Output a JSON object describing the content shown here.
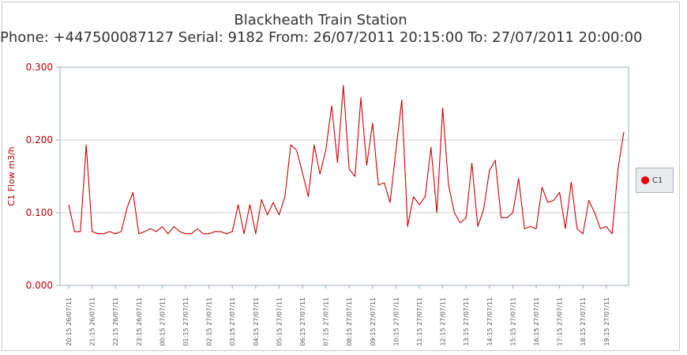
{
  "title": "Blackheath Train Station",
  "subtitle": "Phone: +447500087127 Serial: 9182 From: 26/07/2011 20:15:00 To: 27/07/2011 20:00:00",
  "colors": {
    "series": "#cc0000",
    "axis_text": "#b00000",
    "grid": "#cccccc",
    "plot_border": "#99aabb"
  },
  "chart_data": {
    "type": "line",
    "title": "Blackheath Train Station",
    "subtitle": "Phone: +447500087127 Serial: 9182 From: 26/07/2011 20:15:00 To: 27/07/2011 20:00:00",
    "xlabel": "",
    "ylabel": "C1 Flow m3/h",
    "ylim": [
      0,
      0.3
    ],
    "yticks": [
      "0.000",
      "0.100",
      "0.200",
      "0.300"
    ],
    "grid": true,
    "legend_placement": "right",
    "x_tick_labels": [
      "20:15 26/07/11",
      "21:15 26/07/11",
      "22:15 26/07/11",
      "23:15 26/07/11",
      "00:15 27/07/11",
      "01:15 27/07/11",
      "02:15 27/07/11",
      "03:15 27/07/11",
      "04:15 27/07/11",
      "05:15 27/07/11",
      "06:15 27/07/11",
      "07:15 27/07/11",
      "08:15 27/07/11",
      "09:15 27/07/11",
      "10:15 27/07/11",
      "11:15 27/07/11",
      "12:15 27/07/11",
      "13:15 27/07/11",
      "14:15 27/07/11",
      "15:15 27/07/11",
      "16:15 27/07/11",
      "17:15 27/07/11",
      "18:15 27/07/11",
      "19:15 27/07/11"
    ],
    "series": [
      {
        "name": "C1",
        "color": "#cc0000",
        "values": [
          0.111,
          0.074,
          0.074,
          0.193,
          0.074,
          0.071,
          0.071,
          0.074,
          0.071,
          0.074,
          0.107,
          0.128,
          0.071,
          0.074,
          0.078,
          0.074,
          0.081,
          0.071,
          0.081,
          0.074,
          0.071,
          0.071,
          0.078,
          0.071,
          0.071,
          0.074,
          0.074,
          0.071,
          0.074,
          0.111,
          0.071,
          0.111,
          0.071,
          0.118,
          0.097,
          0.114,
          0.097,
          0.122,
          0.193,
          0.186,
          0.155,
          0.122,
          0.193,
          0.153,
          0.186,
          0.247,
          0.169,
          0.275,
          0.16,
          0.15,
          0.258,
          0.165,
          0.223,
          0.138,
          0.141,
          0.114,
          0.186,
          0.255,
          0.081,
          0.122,
          0.111,
          0.122,
          0.19,
          0.1,
          0.244,
          0.138,
          0.1,
          0.086,
          0.093,
          0.168,
          0.081,
          0.104,
          0.158,
          0.172,
          0.093,
          0.093,
          0.1,
          0.147,
          0.078,
          0.081,
          0.078,
          0.135,
          0.114,
          0.117,
          0.128,
          0.078,
          0.142,
          0.078,
          0.071,
          0.117,
          0.1,
          0.078,
          0.081,
          0.071,
          0.16,
          0.211
        ]
      }
    ]
  },
  "legend": {
    "items": [
      {
        "label": "C1"
      }
    ]
  }
}
